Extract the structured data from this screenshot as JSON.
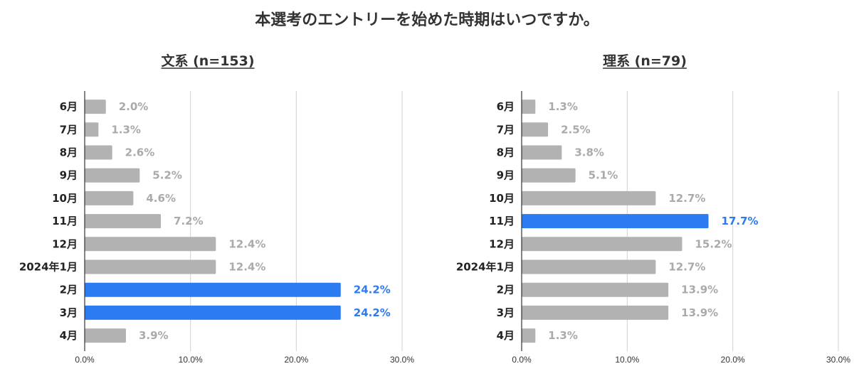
{
  "title": "本選考のエントリーを始めた時期はいつですか。",
  "colors": {
    "bar": "#b2b2b2",
    "highlight": "#2d7bf0",
    "label": "#aaaaaa",
    "grid": "#d0d0d0",
    "axis": "#333333"
  },
  "chart_data": [
    {
      "type": "bar",
      "orientation": "horizontal",
      "title": "文系 (n=153)",
      "categories": [
        "6月",
        "7月",
        "8月",
        "9月",
        "10月",
        "11月",
        "12月",
        "2024年1月",
        "2月",
        "3月",
        "4月"
      ],
      "values": [
        2.0,
        1.3,
        2.6,
        5.2,
        4.6,
        7.2,
        12.4,
        12.4,
        24.2,
        24.2,
        3.9
      ],
      "value_labels": [
        "2.0%",
        "1.3%",
        "2.6%",
        "5.2%",
        "4.6%",
        "7.2%",
        "12.4%",
        "12.4%",
        "24.2%",
        "24.2%",
        "3.9%"
      ],
      "highlight": [
        "2月",
        "3月"
      ],
      "xlim": [
        0,
        30
      ],
      "x_ticks": [
        "0.0%",
        "10.0%",
        "20.0%",
        "30.0%"
      ],
      "grid": true
    },
    {
      "type": "bar",
      "orientation": "horizontal",
      "title": "理系 (n=79)",
      "categories": [
        "6月",
        "7月",
        "8月",
        "9月",
        "10月",
        "11月",
        "12月",
        "2024年1月",
        "2月",
        "3月",
        "4月"
      ],
      "values": [
        1.3,
        2.5,
        3.8,
        5.1,
        12.7,
        17.7,
        15.2,
        12.7,
        13.9,
        13.9,
        1.3
      ],
      "value_labels": [
        "1.3%",
        "2.5%",
        "3.8%",
        "5.1%",
        "12.7%",
        "17.7%",
        "15.2%",
        "12.7%",
        "13.9%",
        "13.9%",
        "1.3%"
      ],
      "highlight": [
        "11月"
      ],
      "xlim": [
        0,
        30
      ],
      "x_ticks": [
        "0.0%",
        "10.0%",
        "20.0%",
        "30.0%"
      ],
      "grid": true
    }
  ]
}
